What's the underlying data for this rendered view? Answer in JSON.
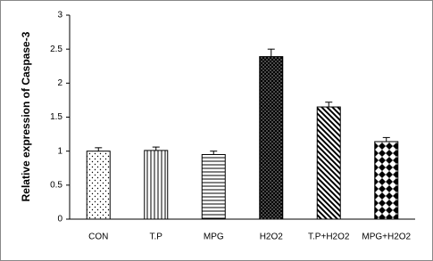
{
  "chart_data": {
    "type": "bar",
    "y_label": "Relative expression of Caspase-3",
    "categories": [
      "CON",
      "T.P",
      "MPG",
      "H2O2",
      "T.P+H2O2",
      "MPG+H2O2"
    ],
    "values": [
      1.0,
      1.01,
      0.95,
      2.39,
      1.65,
      1.14
    ],
    "errors": [
      0.05,
      0.05,
      0.05,
      0.11,
      0.07,
      0.06
    ],
    "ylim": [
      0,
      3
    ],
    "yticks": [
      0,
      0.5,
      1,
      1.5,
      2,
      2.5,
      3
    ],
    "grid": false
  }
}
